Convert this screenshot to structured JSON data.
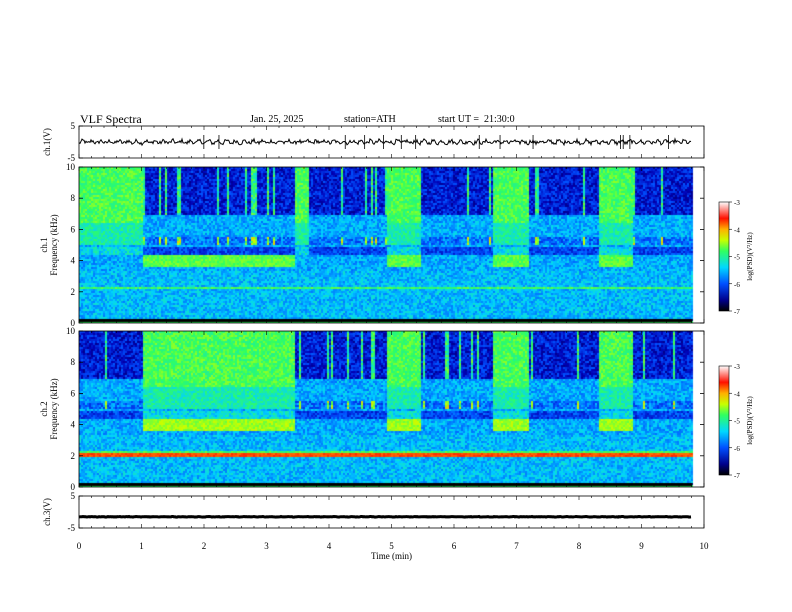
{
  "header": {
    "title": "VLF Spectra",
    "date": "Jan. 25, 2025",
    "station": "station=ATH",
    "start": "start UT =  21:30:0"
  },
  "chart_data": [
    {
      "type": "line",
      "panel": "ch1-waveform",
      "ylabel": "ch.1(V)",
      "ylim": [
        -5,
        5
      ],
      "yticks": [
        5,
        -5
      ],
      "xlim": [
        0,
        10
      ],
      "description_values": {
        "baseline": 0,
        "amplitude": 1
      }
    },
    {
      "type": "heatmap",
      "panel": "ch1-spectrogram",
      "ylabel": "ch.1\nFrequency (kHz)",
      "ylabel_line1": "ch.1",
      "ylabel_line2": "Frequency (kHz)",
      "ylim": [
        0,
        10
      ],
      "yticks": [
        0,
        2,
        4,
        6,
        8,
        10
      ],
      "xlim": [
        0,
        10
      ],
      "data_end_min": 9.8,
      "colorbar": {
        "label": "log(PSD)(V²/Hz)",
        "range": [
          -7,
          -3
        ],
        "ticks": [
          -3,
          -4,
          -5,
          -6,
          -7
        ]
      },
      "high_activity_intervals_min": [
        [
          0,
          1.0
        ],
        [
          3.45,
          3.65
        ],
        [
          4.9,
          5.45
        ],
        [
          6.6,
          7.2
        ],
        [
          8.3,
          8.85
        ]
      ],
      "band_4khz_intervals_min": [
        [
          1.0,
          3.45
        ],
        [
          4.9,
          5.45
        ],
        [
          6.6,
          7.2
        ],
        [
          8.3,
          8.85
        ]
      ]
    },
    {
      "type": "heatmap",
      "panel": "ch2-spectrogram",
      "ylabel_line1": "ch.2",
      "ylabel_line2": "Frequency (kHz)",
      "ylim": [
        0,
        10
      ],
      "yticks": [
        0,
        2,
        4,
        6,
        8,
        10
      ],
      "xlim": [
        0,
        10
      ],
      "data_end_min": 9.8,
      "colorbar": {
        "label": "log(PSD)(V²/Hz)",
        "range": [
          -7,
          -3
        ],
        "ticks": [
          -3,
          -4,
          -5,
          -6,
          -7
        ]
      },
      "high_activity_intervals_min": [
        [
          1.0,
          3.45
        ],
        [
          4.9,
          5.45
        ],
        [
          6.6,
          7.2
        ],
        [
          8.3,
          8.85
        ]
      ],
      "band_4khz_intervals_min": [
        [
          1.0,
          3.45
        ],
        [
          4.9,
          5.45
        ],
        [
          6.6,
          7.2
        ],
        [
          8.3,
          8.85
        ]
      ],
      "band_2khz_line": 2.1
    },
    {
      "type": "line",
      "panel": "ch3-waveform",
      "ylabel": "ch.3(V)",
      "ylim": [
        -5,
        5
      ],
      "yticks": [
        5,
        -5
      ],
      "xlim": [
        0,
        10
      ],
      "xlabel": "Time (min)",
      "xticks": [
        0,
        1,
        2,
        3,
        4,
        5,
        6,
        7,
        8,
        9,
        10
      ],
      "description_values": {
        "baseline": -1.5,
        "amplitude": 0.1
      }
    }
  ],
  "axes": {
    "xlabel": "Time (min)",
    "xticks": [
      "0",
      "1",
      "2",
      "3",
      "4",
      "5",
      "6",
      "7",
      "8",
      "9",
      "10"
    ],
    "wave_yticks": [
      "5",
      "-5"
    ],
    "freq_yticks": [
      "0",
      "2",
      "4",
      "6",
      "8",
      "10"
    ],
    "cb_ticks": [
      "-3",
      "-4",
      "-5",
      "-6",
      "-7"
    ]
  },
  "colors": {
    "colormap": [
      "#00005a",
      "#0000c8",
      "#0060ff",
      "#00c8ff",
      "#40ff80",
      "#ccff00",
      "#ffcc00",
      "#ff2000",
      "#ffffff"
    ],
    "trace": "#000000"
  }
}
